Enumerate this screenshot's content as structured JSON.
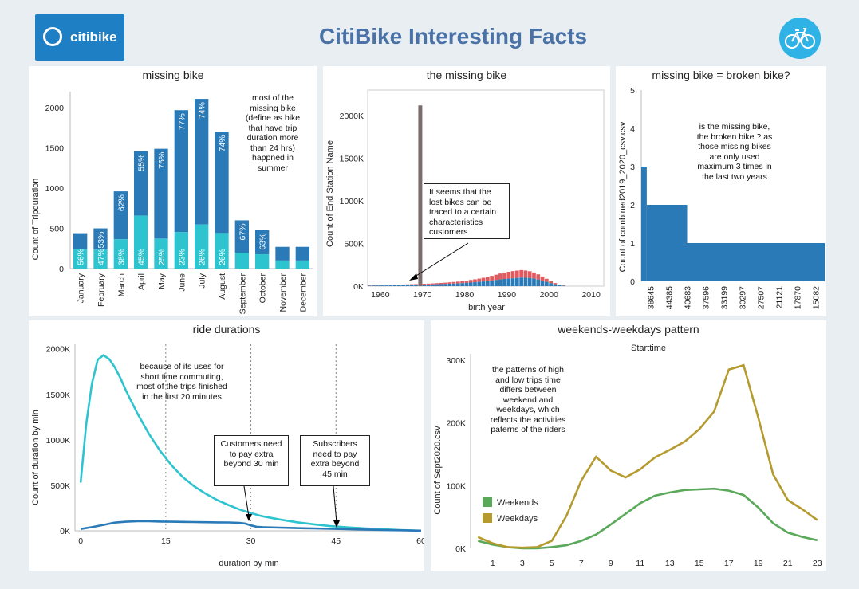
{
  "header": {
    "title": "CitiBike Interesting Facts",
    "logo_text": "citibike"
  },
  "panels": {
    "p1": {
      "title": "missing bike",
      "ylabel": "Count of Tripduration",
      "note": "most of the missing bike (define as bike that have trip duration more than 24 hrs) happned in summer"
    },
    "p2": {
      "title": "the missing bike",
      "ylabel": "Count of End Station Name",
      "xlabel": "birth year",
      "note": "It seems that the lost bikes can be traced to a certain characteristics customers"
    },
    "p3": {
      "title": "missing bike = broken bike?",
      "ylabel": "Count of combined2019_2020_csv.csv",
      "note": "is the missing bike, the broken bike ? as those missing bikes are only used maximum 3 times in the last two years"
    },
    "p4": {
      "title": "ride durations",
      "ylabel": "Count of duration by min",
      "xlabel": "duration by min",
      "note": "because of its uses for short time commuting, most of the trips finished in the first 20 minutes",
      "box1": "Customers need to pay extra beyond 30 min",
      "box2": "Subscribers need to pay extra beyond 45 min"
    },
    "p5": {
      "title": "weekends-weekdays pattern",
      "subtitle": "Starttime",
      "ylabel": "Count of Sept2020.csv",
      "note": "the patterns of high and low trips time differs between weekend and weekdays, which reflects the activities paterns of the riders"
    }
  },
  "colors": {
    "dark": "#2a7ab8",
    "light": "#2ec4cf",
    "red": "#e05a5f",
    "brown": "#7d6c6c",
    "green": "#5aa95a",
    "gold": "#b59a2e"
  },
  "chart_data": [
    {
      "type": "bar",
      "id": "missing-bike",
      "categories": [
        "January",
        "February",
        "March",
        "April",
        "May",
        "June",
        "July",
        "August",
        "September",
        "October",
        "November",
        "December"
      ],
      "totals": [
        440,
        500,
        960,
        1460,
        1490,
        1970,
        2110,
        1700,
        600,
        480,
        270,
        270
      ],
      "series": [
        {
          "name": "",
          "values": [
            246,
            235,
            365,
            657,
            373,
            453,
            549,
            442,
            198,
            178,
            100,
            100
          ]
        },
        {
          "name": "",
          "values": [
            194,
            265,
            595,
            803,
            1117,
            1517,
            1561,
            1258,
            402,
            302,
            170,
            170
          ]
        }
      ],
      "labels_light": [
        "56%",
        "47%",
        "38%",
        "45%",
        "25%",
        "23%",
        "26%",
        "26%",
        "",
        "",
        "",
        ""
      ],
      "labels_dark": [
        "",
        "53%",
        "62%",
        "55%",
        "75%",
        "77%",
        "74%",
        "74%",
        "67%",
        "63%",
        "",
        ""
      ],
      "yticks": [
        "0",
        "500",
        "1000",
        "1500",
        "2000"
      ],
      "ylim": [
        0,
        2200
      ]
    },
    {
      "type": "bar",
      "id": "missing-bike-birth-year",
      "xticks": [
        "1960",
        "1970",
        "1980",
        "1990",
        "2000",
        "2010"
      ],
      "yticks": [
        "0K",
        "500K",
        "1000K",
        "1500K",
        "2000K"
      ],
      "xlim": [
        1957,
        2013
      ],
      "ylim": [
        0,
        2300
      ],
      "spike": {
        "x": 1969,
        "y": 2120
      },
      "x": [
        1957,
        1958,
        1959,
        1960,
        1961,
        1962,
        1963,
        1964,
        1965,
        1966,
        1967,
        1968,
        1969,
        1970,
        1971,
        1972,
        1973,
        1974,
        1975,
        1976,
        1977,
        1978,
        1979,
        1980,
        1981,
        1982,
        1983,
        1984,
        1985,
        1986,
        1987,
        1988,
        1989,
        1990,
        1991,
        1992,
        1993,
        1994,
        1995,
        1996,
        1997,
        1998,
        1999,
        2000,
        2001,
        2002,
        2003
      ],
      "blue": [
        5,
        6,
        7,
        8,
        8,
        9,
        10,
        11,
        12,
        13,
        14,
        15,
        16,
        17,
        18,
        20,
        22,
        24,
        26,
        28,
        30,
        32,
        35,
        38,
        42,
        46,
        50,
        55,
        60,
        66,
        72,
        78,
        84,
        88,
        92,
        96,
        100,
        98,
        95,
        88,
        78,
        65,
        50,
        35,
        22,
        12,
        5
      ],
      "red": [
        3,
        3,
        4,
        4,
        5,
        5,
        6,
        6,
        7,
        8,
        8,
        9,
        9,
        10,
        11,
        12,
        13,
        14,
        15,
        17,
        19,
        21,
        24,
        27,
        30,
        34,
        38,
        43,
        48,
        55,
        62,
        70,
        76,
        80,
        84,
        86,
        88,
        85,
        80,
        72,
        60,
        48,
        36,
        24,
        14,
        7,
        3
      ]
    },
    {
      "type": "bar",
      "id": "broken-bike",
      "xticks": [
        "38645",
        "44385",
        "40683",
        "37596",
        "33199",
        "30297",
        "27507",
        "21121",
        "17870",
        "15082"
      ],
      "yticks": [
        "0",
        "1",
        "2",
        "3",
        "4",
        "5"
      ],
      "ylim": [
        0,
        5
      ],
      "steps": [
        {
          "from": 0,
          "to": 0.3,
          "value": 3
        },
        {
          "from": 0.3,
          "to": 2.5,
          "value": 2
        },
        {
          "from": 2.5,
          "to": 10,
          "value": 1
        }
      ]
    },
    {
      "type": "line",
      "id": "ride-durations",
      "xticks": [
        "0",
        "15",
        "30",
        "45",
        "60"
      ],
      "yticks": [
        "0K",
        "500K",
        "1000K",
        "1500K",
        "2000K"
      ],
      "xlim": [
        -1,
        60
      ],
      "ylim": [
        0,
        2050
      ],
      "series": [
        {
          "name": "",
          "color": "light",
          "x": [
            0,
            1,
            2,
            3,
            4,
            5,
            6,
            7,
            8,
            10,
            12,
            14,
            16,
            18,
            20,
            22,
            24,
            26,
            28,
            30,
            32,
            35,
            38,
            41,
            44,
            47,
            50,
            53,
            56,
            60
          ],
          "y": [
            530,
            1180,
            1620,
            1880,
            1930,
            1890,
            1800,
            1680,
            1540,
            1290,
            1070,
            880,
            720,
            590,
            490,
            410,
            340,
            285,
            235,
            195,
            160,
            125,
            95,
            72,
            52,
            38,
            27,
            18,
            10,
            0
          ]
        },
        {
          "name": "",
          "color": "dark",
          "x": [
            0,
            2,
            4,
            6,
            8,
            10,
            12,
            14,
            16,
            18,
            20,
            22,
            24,
            26,
            28,
            29,
            30,
            31,
            32,
            35,
            38,
            41,
            44,
            47,
            50,
            53,
            56,
            60
          ],
          "y": [
            20,
            40,
            65,
            90,
            100,
            105,
            105,
            102,
            100,
            98,
            96,
            95,
            93,
            92,
            88,
            80,
            60,
            45,
            40,
            35,
            30,
            26,
            22,
            18,
            14,
            10,
            6,
            2
          ]
        }
      ]
    },
    {
      "type": "line",
      "id": "weekends-weekdays",
      "xticks": [
        "1",
        "3",
        "5",
        "7",
        "9",
        "11",
        "13",
        "15",
        "17",
        "19",
        "21",
        "23"
      ],
      "yticks": [
        "0K",
        "100K",
        "200K",
        "300K"
      ],
      "xlim": [
        -0.5,
        23.5
      ],
      "ylim": [
        0,
        310
      ],
      "series": [
        {
          "name": "Weekends",
          "color": "green",
          "x": [
            0,
            1,
            2,
            3,
            4,
            5,
            6,
            7,
            8,
            9,
            10,
            11,
            12,
            13,
            14,
            15,
            16,
            17,
            18,
            19,
            20,
            21,
            22,
            23
          ],
          "y": [
            12,
            6,
            2,
            0,
            0,
            2,
            5,
            12,
            22,
            38,
            55,
            72,
            84,
            89,
            93,
            94,
            95,
            92,
            85,
            65,
            40,
            25,
            18,
            13
          ]
        },
        {
          "name": "Weekdays",
          "color": "gold",
          "x": [
            0,
            1,
            2,
            3,
            4,
            5,
            6,
            7,
            8,
            9,
            10,
            11,
            12,
            13,
            14,
            15,
            16,
            17,
            18,
            19,
            20,
            21,
            22,
            23
          ],
          "y": [
            18,
            8,
            2,
            1,
            2,
            12,
            52,
            108,
            146,
            124,
            113,
            126,
            145,
            157,
            170,
            190,
            218,
            285,
            292,
            208,
            118,
            77,
            62,
            45
          ]
        }
      ]
    }
  ]
}
